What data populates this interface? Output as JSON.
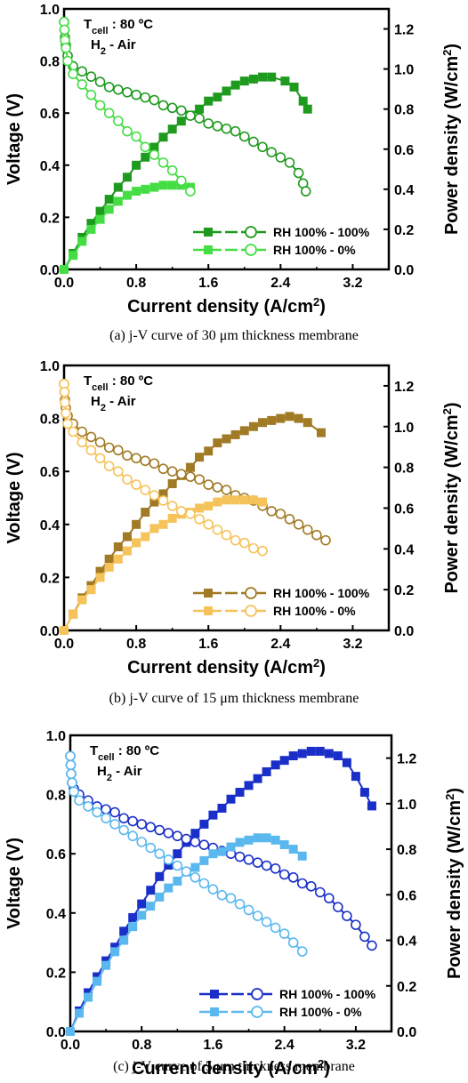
{
  "chart_data": [
    {
      "type": "line",
      "caption": "(a)   j-V curve of 30 μm thickness membrane",
      "annotation": {
        "line1_main": "T",
        "line1_sub": "cell",
        "line1_rest": " : 80 ºC",
        "line2_main": "H",
        "line2_sub": "2",
        "line2_rest": " - Air"
      },
      "xlabel": "Current density (A/cm",
      "xlabel_sup": "2",
      "xlabel_close": ")",
      "ylabel": "Voltage (V)",
      "y2label": "Power density (W/cm",
      "y2label_sup": "2",
      "y2label_close": ")",
      "xlim": [
        0,
        3.6
      ],
      "ylim": [
        0,
        1.0
      ],
      "y2lim": [
        0,
        1.3
      ],
      "xticks": [
        "0.0",
        "0.8",
        "1.6",
        "2.4",
        "3.2"
      ],
      "yticks": [
        "0.0",
        "0.2",
        "0.4",
        "0.6",
        "0.8",
        "1.0"
      ],
      "y2ticks": [
        "0.0",
        "0.2",
        "0.4",
        "0.6",
        "0.8",
        "1.0",
        "1.2"
      ],
      "legend_position": "bottom-right",
      "series": [
        {
          "name": "RH 100% - 100%",
          "color": "#1e9a1e",
          "voltage": {
            "x": [
              0.0,
              0.005,
              0.01,
              0.02,
              0.04,
              0.1,
              0.2,
              0.3,
              0.4,
              0.5,
              0.6,
              0.7,
              0.8,
              0.9,
              1.0,
              1.1,
              1.2,
              1.3,
              1.4,
              1.5,
              1.6,
              1.7,
              1.8,
              1.9,
              2.0,
              2.1,
              2.2,
              2.3,
              2.4,
              2.5,
              2.6,
              2.65,
              2.68
            ],
            "y": [
              0.95,
              0.92,
              0.89,
              0.86,
              0.82,
              0.78,
              0.76,
              0.74,
              0.72,
              0.7,
              0.69,
              0.68,
              0.67,
              0.66,
              0.65,
              0.63,
              0.62,
              0.61,
              0.59,
              0.58,
              0.56,
              0.55,
              0.54,
              0.53,
              0.51,
              0.49,
              0.47,
              0.45,
              0.43,
              0.41,
              0.37,
              0.33,
              0.3
            ]
          },
          "power": {
            "x": [
              0.0,
              0.1,
              0.2,
              0.3,
              0.4,
              0.5,
              0.6,
              0.7,
              0.8,
              0.9,
              1.0,
              1.1,
              1.2,
              1.3,
              1.4,
              1.5,
              1.6,
              1.7,
              1.8,
              1.9,
              2.0,
              2.1,
              2.2,
              2.3,
              2.45,
              2.55,
              2.65,
              2.7
            ],
            "y": [
              0.0,
              0.08,
              0.16,
              0.23,
              0.29,
              0.35,
              0.41,
              0.46,
              0.52,
              0.56,
              0.61,
              0.66,
              0.7,
              0.74,
              0.77,
              0.8,
              0.84,
              0.86,
              0.89,
              0.92,
              0.94,
              0.95,
              0.96,
              0.96,
              0.94,
              0.91,
              0.84,
              0.8
            ]
          }
        },
        {
          "name": "RH 100% - 0%",
          "color": "#44dd44",
          "voltage": {
            "x": [
              0.0,
              0.005,
              0.01,
              0.02,
              0.04,
              0.1,
              0.2,
              0.3,
              0.4,
              0.5,
              0.6,
              0.7,
              0.8,
              0.9,
              1.0,
              1.1,
              1.2,
              1.3,
              1.4
            ],
            "y": [
              0.95,
              0.92,
              0.88,
              0.85,
              0.8,
              0.75,
              0.71,
              0.67,
              0.63,
              0.6,
              0.57,
              0.53,
              0.51,
              0.47,
              0.44,
              0.41,
              0.38,
              0.34,
              0.3
            ]
          },
          "power": {
            "x": [
              0.0,
              0.1,
              0.2,
              0.3,
              0.4,
              0.5,
              0.6,
              0.7,
              0.8,
              0.9,
              1.0,
              1.1,
              1.2,
              1.3,
              1.4
            ],
            "y": [
              0.0,
              0.07,
              0.14,
              0.2,
              0.25,
              0.3,
              0.34,
              0.37,
              0.39,
              0.4,
              0.41,
              0.42,
              0.42,
              0.42,
              0.41
            ]
          }
        }
      ]
    },
    {
      "type": "line",
      "caption": "(b)   j-V curve of 15 μm thickness membrane",
      "annotation": {
        "line1_main": "T",
        "line1_sub": "cell",
        "line1_rest": " : 80 ºC",
        "line2_main": "H",
        "line2_sub": "2",
        "line2_rest": " - Air"
      },
      "xlabel": "Current density (A/cm",
      "xlabel_sup": "2",
      "xlabel_close": ")",
      "ylabel": "Voltage (V)",
      "y2label": "Power density (W/cm",
      "y2label_sup": "2",
      "y2label_close": ")",
      "xlim": [
        0,
        3.6
      ],
      "ylim": [
        0,
        1.0
      ],
      "y2lim": [
        0,
        1.3
      ],
      "xticks": [
        "0.0",
        "0.8",
        "1.6",
        "2.4",
        "3.2"
      ],
      "yticks": [
        "0.0",
        "0.2",
        "0.4",
        "0.6",
        "0.8",
        "1.0"
      ],
      "y2ticks": [
        "0.0",
        "0.2",
        "0.4",
        "0.6",
        "0.8",
        "1.0",
        "1.2"
      ],
      "legend_position": "bottom-right",
      "series": [
        {
          "name": "RH 100% - 100%",
          "color": "#a07a24",
          "voltage": {
            "x": [
              0.0,
              0.005,
              0.01,
              0.02,
              0.04,
              0.1,
              0.2,
              0.3,
              0.4,
              0.5,
              0.6,
              0.7,
              0.8,
              0.9,
              1.0,
              1.1,
              1.2,
              1.3,
              1.4,
              1.5,
              1.6,
              1.7,
              1.8,
              1.9,
              2.0,
              2.1,
              2.2,
              2.3,
              2.4,
              2.5,
              2.6,
              2.7,
              2.8,
              2.9
            ],
            "y": [
              0.93,
              0.9,
              0.87,
              0.84,
              0.81,
              0.78,
              0.75,
              0.73,
              0.71,
              0.69,
              0.68,
              0.66,
              0.65,
              0.64,
              0.63,
              0.61,
              0.6,
              0.59,
              0.58,
              0.57,
              0.55,
              0.54,
              0.53,
              0.51,
              0.5,
              0.49,
              0.47,
              0.45,
              0.44,
              0.42,
              0.4,
              0.38,
              0.36,
              0.34
            ]
          },
          "power": {
            "x": [
              0.0,
              0.1,
              0.2,
              0.3,
              0.4,
              0.5,
              0.6,
              0.7,
              0.8,
              0.9,
              1.0,
              1.1,
              1.2,
              1.3,
              1.4,
              1.5,
              1.6,
              1.7,
              1.8,
              1.9,
              2.0,
              2.1,
              2.2,
              2.3,
              2.4,
              2.5,
              2.6,
              2.7,
              2.85
            ],
            "y": [
              0.0,
              0.08,
              0.16,
              0.22,
              0.29,
              0.35,
              0.41,
              0.46,
              0.52,
              0.58,
              0.63,
              0.67,
              0.72,
              0.76,
              0.8,
              0.85,
              0.88,
              0.92,
              0.94,
              0.96,
              0.98,
              1.0,
              1.02,
              1.03,
              1.04,
              1.05,
              1.04,
              1.02,
              0.97
            ]
          }
        },
        {
          "name": "RH 100% - 0%",
          "color": "#f5c35a",
          "voltage": {
            "x": [
              0.0,
              0.005,
              0.01,
              0.02,
              0.04,
              0.1,
              0.2,
              0.3,
              0.4,
              0.5,
              0.6,
              0.7,
              0.8,
              0.9,
              1.0,
              1.1,
              1.2,
              1.3,
              1.4,
              1.5,
              1.6,
              1.7,
              1.8,
              1.9,
              2.0,
              2.1,
              2.2
            ],
            "y": [
              0.93,
              0.9,
              0.86,
              0.82,
              0.78,
              0.75,
              0.71,
              0.68,
              0.65,
              0.62,
              0.6,
              0.57,
              0.55,
              0.53,
              0.51,
              0.49,
              0.47,
              0.45,
              0.44,
              0.42,
              0.4,
              0.38,
              0.36,
              0.34,
              0.33,
              0.31,
              0.3
            ]
          },
          "power": {
            "x": [
              0.0,
              0.1,
              0.2,
              0.3,
              0.4,
              0.5,
              0.6,
              0.7,
              0.8,
              0.9,
              1.0,
              1.1,
              1.2,
              1.3,
              1.4,
              1.5,
              1.6,
              1.7,
              1.8,
              1.9,
              2.0,
              2.1,
              2.2
            ],
            "y": [
              0.0,
              0.08,
              0.15,
              0.2,
              0.26,
              0.31,
              0.35,
              0.39,
              0.43,
              0.46,
              0.5,
              0.52,
              0.55,
              0.57,
              0.58,
              0.6,
              0.61,
              0.63,
              0.64,
              0.64,
              0.64,
              0.64,
              0.63
            ]
          }
        }
      ]
    },
    {
      "type": "line",
      "caption": "(c)   j-V curve of 5 μm thickness membrane",
      "annotation": {
        "line1_main": "T",
        "line1_sub": "cell",
        "line1_rest": " : 80 ºC",
        "line2_main": "H",
        "line2_sub": "2",
        "line2_rest": " - Air"
      },
      "xlabel": "Current density (A/cm",
      "xlabel_sup": "2",
      "xlabel_close": ")",
      "ylabel": "Voltage (V)",
      "y2label": "Power density (W/cm",
      "y2label_sup": "2",
      "y2label_close": ")",
      "xlim": [
        0,
        3.6
      ],
      "ylim": [
        0,
        1.0
      ],
      "y2lim": [
        0,
        1.3
      ],
      "xticks": [
        "0.0",
        "0.8",
        "1.6",
        "2.4",
        "3.2"
      ],
      "yticks": [
        "0.0",
        "0.2",
        "0.4",
        "0.6",
        "0.8",
        "1.0"
      ],
      "y2ticks": [
        "0.0",
        "0.2",
        "0.4",
        "0.6",
        "0.8",
        "1.0",
        "1.2"
      ],
      "legend_position": "bottom-right",
      "series": [
        {
          "name": "RH 100% - 100%",
          "color": "#1a2fc8",
          "voltage": {
            "x": [
              0.0,
              0.005,
              0.01,
              0.02,
              0.04,
              0.1,
              0.2,
              0.3,
              0.4,
              0.5,
              0.6,
              0.7,
              0.8,
              0.9,
              1.0,
              1.1,
              1.2,
              1.3,
              1.4,
              1.5,
              1.6,
              1.7,
              1.8,
              1.9,
              2.0,
              2.1,
              2.2,
              2.3,
              2.4,
              2.5,
              2.6,
              2.7,
              2.8,
              2.9,
              3.0,
              3.1,
              3.2,
              3.3,
              3.38
            ],
            "y": [
              0.93,
              0.9,
              0.87,
              0.84,
              0.82,
              0.8,
              0.78,
              0.76,
              0.75,
              0.74,
              0.72,
              0.71,
              0.7,
              0.69,
              0.68,
              0.67,
              0.66,
              0.65,
              0.64,
              0.63,
              0.62,
              0.61,
              0.6,
              0.59,
              0.58,
              0.57,
              0.56,
              0.55,
              0.53,
              0.52,
              0.5,
              0.49,
              0.47,
              0.45,
              0.42,
              0.39,
              0.36,
              0.32,
              0.29
            ]
          },
          "power": {
            "x": [
              0.0,
              0.1,
              0.2,
              0.3,
              0.4,
              0.5,
              0.6,
              0.7,
              0.8,
              0.9,
              1.0,
              1.1,
              1.2,
              1.3,
              1.4,
              1.5,
              1.6,
              1.7,
              1.8,
              1.9,
              2.0,
              2.1,
              2.2,
              2.3,
              2.4,
              2.5,
              2.6,
              2.7,
              2.8,
              2.9,
              3.0,
              3.1,
              3.2,
              3.3,
              3.38
            ],
            "y": [
              0.0,
              0.09,
              0.17,
              0.24,
              0.31,
              0.37,
              0.44,
              0.5,
              0.56,
              0.62,
              0.68,
              0.73,
              0.78,
              0.83,
              0.87,
              0.91,
              0.95,
              0.98,
              1.02,
              1.05,
              1.08,
              1.11,
              1.14,
              1.17,
              1.19,
              1.21,
              1.22,
              1.23,
              1.23,
              1.22,
              1.21,
              1.18,
              1.12,
              1.05,
              0.99
            ]
          }
        },
        {
          "name": "RH 100% - 0%",
          "color": "#5bb8ee",
          "voltage": {
            "x": [
              0.0,
              0.005,
              0.01,
              0.02,
              0.04,
              0.1,
              0.2,
              0.3,
              0.4,
              0.5,
              0.6,
              0.7,
              0.8,
              0.9,
              1.0,
              1.1,
              1.2,
              1.3,
              1.4,
              1.5,
              1.6,
              1.7,
              1.8,
              1.9,
              2.0,
              2.1,
              2.2,
              2.3,
              2.4,
              2.5,
              2.6
            ],
            "y": [
              0.93,
              0.9,
              0.87,
              0.84,
              0.81,
              0.78,
              0.76,
              0.74,
              0.72,
              0.7,
              0.68,
              0.66,
              0.64,
              0.62,
              0.6,
              0.58,
              0.56,
              0.54,
              0.52,
              0.5,
              0.48,
              0.46,
              0.45,
              0.43,
              0.41,
              0.39,
              0.37,
              0.35,
              0.33,
              0.3,
              0.27
            ]
          },
          "power": {
            "x": [
              0.0,
              0.1,
              0.2,
              0.3,
              0.4,
              0.5,
              0.6,
              0.7,
              0.8,
              0.9,
              1.0,
              1.1,
              1.2,
              1.3,
              1.4,
              1.5,
              1.6,
              1.7,
              1.8,
              1.9,
              2.0,
              2.1,
              2.2,
              2.3,
              2.4,
              2.5,
              2.6
            ],
            "y": [
              0.0,
              0.08,
              0.15,
              0.22,
              0.29,
              0.35,
              0.4,
              0.46,
              0.51,
              0.55,
              0.59,
              0.63,
              0.66,
              0.7,
              0.72,
              0.75,
              0.78,
              0.79,
              0.81,
              0.83,
              0.84,
              0.85,
              0.85,
              0.84,
              0.82,
              0.8,
              0.77
            ]
          }
        }
      ]
    }
  ]
}
